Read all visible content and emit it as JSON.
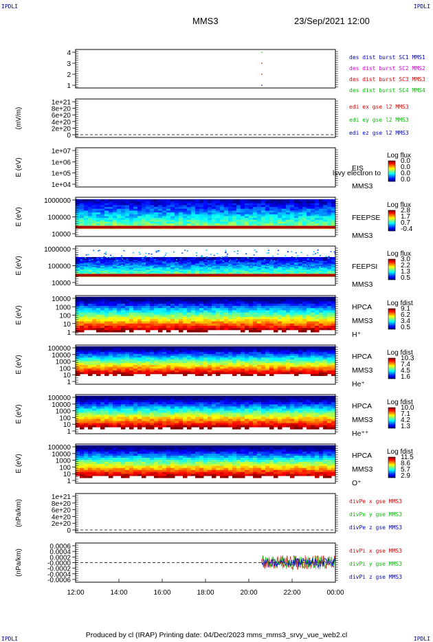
{
  "corner_label": "IPDLI",
  "header": {
    "spacecraft": "MMS3",
    "datetime": "23/Sep/2021 12:00"
  },
  "footer": {
    "text": "Produced by cl (IRAP)   Printing date: 04/Dec/2023   mms_mms3_srvy_vue_web2.cl"
  },
  "colors": {
    "red": "#e00000",
    "green": "#00c000",
    "blue": "#0000c0",
    "magenta": "#e000e0"
  },
  "chart_data": {
    "type": "heatmap",
    "time_axis": {
      "tick_labels": [
        "12:00",
        "14:00",
        "16:00",
        "18:00",
        "20:00",
        "22:00",
        "00:00"
      ],
      "range_hours": [
        12,
        24
      ]
    },
    "panels": [
      {
        "id": "burst",
        "ylabel": "",
        "ticks": [
          "4",
          "3",
          "2",
          "1"
        ],
        "legend": [
          {
            "text": "des dist burst SC1 MMS1",
            "color": "blue"
          },
          {
            "text": "des dist burst SC2 MMS2",
            "color": "magenta"
          },
          {
            "text": "des dist burst SC3 MMS3",
            "color": "red"
          },
          {
            "text": "des dist burst SC4 MMS4",
            "color": "green"
          }
        ],
        "points": [
          {
            "x": 20.6,
            "y": 4
          },
          {
            "x": 20.6,
            "y": 3
          },
          {
            "x": 20.6,
            "y": 2
          },
          {
            "x": 20.6,
            "y": 1
          }
        ]
      },
      {
        "id": "edi",
        "ylabel": "(mV/m)",
        "ticks": [
          "1e+21",
          "8e+20",
          "6e+20",
          "4e+20",
          "2e+20",
          "0"
        ],
        "legend": [
          {
            "text": "edi ex gse l2 MMS3",
            "color": "red"
          },
          {
            "text": "edi ey gse l2 MMS3",
            "color": "green"
          },
          {
            "text": "edi ez gse l2 MMS3",
            "color": "blue"
          }
        ]
      },
      {
        "id": "eis",
        "ylabel": "E (eV)",
        "ticks": [
          "1e+07",
          "1e+06",
          "1e+05",
          "1e+04"
        ],
        "labels": [
          "EIS",
          "MMS3"
        ],
        "overlay": "lsvy electron to",
        "colorbar": {
          "title": "Log flux",
          "ticks": [
            "0.0",
            "0.0",
            "0.0",
            "0.0"
          ]
        }
      },
      {
        "id": "feepse",
        "ylabel": "E (eV)",
        "ticks": [
          "1000000",
          "100000",
          "10000"
        ],
        "labels": [
          "FEEPSE",
          "MMS3"
        ],
        "colorbar": {
          "title": "Log flux",
          "ticks": [
            "2.8",
            "1.7",
            "0.7",
            "-0.4"
          ]
        }
      },
      {
        "id": "feepsi",
        "ylabel": "E (eV)",
        "ticks": [
          "1000000",
          "100000",
          "10000"
        ],
        "labels": [
          "FEEPSI",
          "MMS3"
        ],
        "colorbar": {
          "title": "Log flux",
          "ticks": [
            "3.0",
            "2.2",
            "1.3",
            "0.5"
          ]
        }
      },
      {
        "id": "hpca_h",
        "ylabel": "E (eV)",
        "ticks": [
          "10000",
          "1000",
          "100",
          "10",
          "1"
        ],
        "labels": [
          "HPCA",
          "MMS3",
          "H⁺"
        ],
        "colorbar": {
          "title": "Log fdist",
          "ticks": [
            "9.1",
            "6.2",
            "3.4",
            "0.5"
          ]
        }
      },
      {
        "id": "hpca_he",
        "ylabel": "E (eV)",
        "ticks": [
          "100000",
          "10000",
          "1000",
          "100",
          "10",
          "1"
        ],
        "labels": [
          "HPCA",
          "MMS3",
          "He⁺"
        ],
        "colorbar": {
          "title": "Log fdist",
          "ticks": [
            "10.3",
            "7.4",
            "4.5",
            "1.6"
          ]
        }
      },
      {
        "id": "hpca_he2",
        "ylabel": "E (eV)",
        "ticks": [
          "100000",
          "10000",
          "1000",
          "100",
          "10",
          "1"
        ],
        "labels": [
          "HPCA",
          "MMS3",
          "He⁺⁺"
        ],
        "colorbar": {
          "title": "Log fdist",
          "ticks": [
            "10.0",
            "7.1",
            "4.2",
            "1.3"
          ]
        }
      },
      {
        "id": "hpca_o",
        "ylabel": "E (eV)",
        "ticks": [
          "100000",
          "10000",
          "1000",
          "100",
          "10",
          "1"
        ],
        "labels": [
          "HPCA",
          "MMS3",
          "O⁺"
        ],
        "colorbar": {
          "title": "Log fdist",
          "ticks": [
            "11.5",
            "8.6",
            "5.7",
            "2.9"
          ]
        }
      },
      {
        "id": "divpe",
        "ylabel": "(nPa/km)",
        "ticks": [
          "1e+21",
          "8e+20",
          "6e+20",
          "4e+20",
          "2e+20",
          "0"
        ],
        "legend": [
          {
            "text": "divPe x gse MMS3",
            "color": "red"
          },
          {
            "text": "divPe y gse MMS3",
            "color": "green"
          },
          {
            "text": "divPe z gse MMS3",
            "color": "blue"
          }
        ]
      },
      {
        "id": "divpi",
        "ylabel": "(nPa/km)",
        "ticks": [
          "0.0006",
          "0.0004",
          "0.0002",
          "-0.0000",
          "-0.0002",
          "-0.0004",
          "-0.0006"
        ],
        "legend": [
          {
            "text": "divPi x gse MMS3",
            "color": "red"
          },
          {
            "text": "divPi y gse MMS3",
            "color": "green"
          },
          {
            "text": "divPi z gse MMS3",
            "color": "blue"
          }
        ],
        "data_start_hours": 20.6
      }
    ]
  }
}
